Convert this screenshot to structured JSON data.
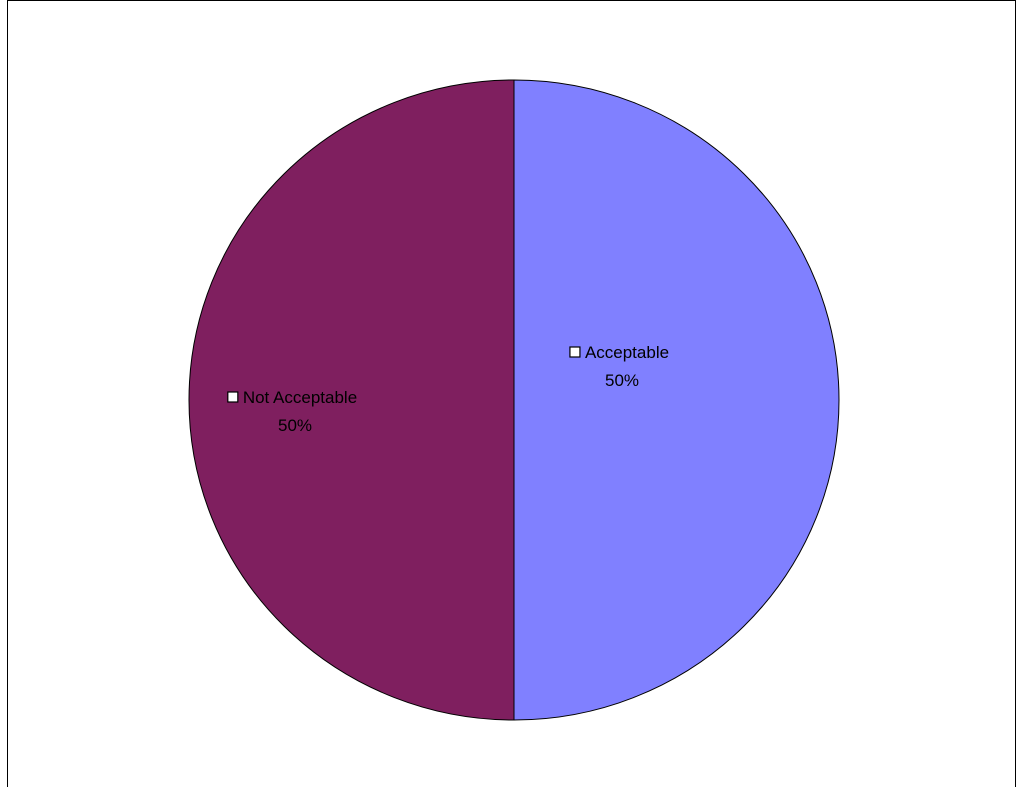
{
  "chart_data": {
    "type": "pie",
    "slices": [
      {
        "label": "Acceptable",
        "value": 50,
        "percent_label": "50%",
        "color": "#8080FF"
      },
      {
        "label": "Not Acceptable",
        "value": 50,
        "percent_label": "50%",
        "color": "#7F1F5F"
      }
    ],
    "start_angle_deg": 0,
    "direction": "clockwise",
    "slice_border_color": "#000000",
    "legend_marker": "hollow-square"
  }
}
